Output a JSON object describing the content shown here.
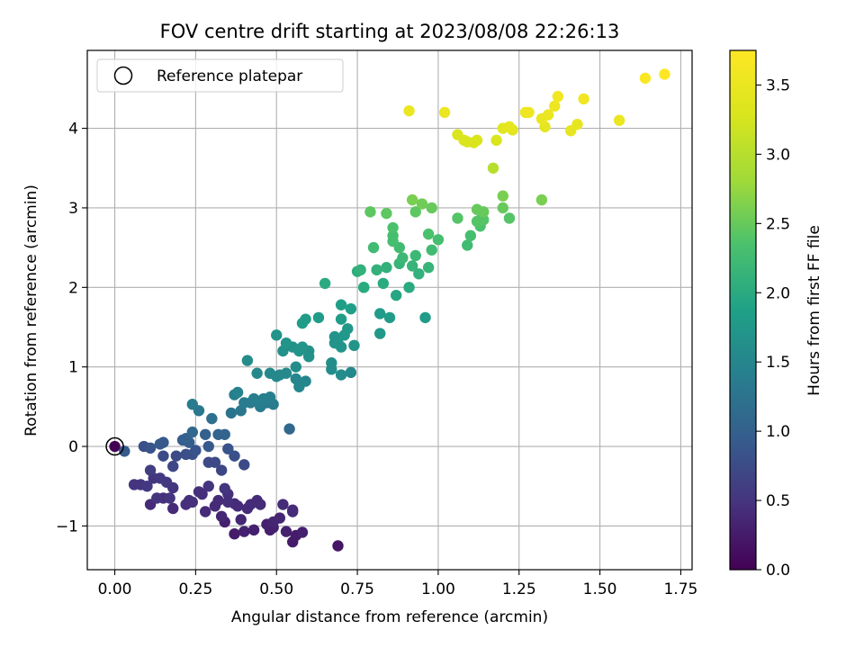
{
  "chart_data": {
    "type": "scatter",
    "title": "FOV centre drift starting at 2023/08/08 22:26:13",
    "xlabel": "Angular distance from reference (arcmin)",
    "ylabel": "Rotation from reference (arcmin)",
    "xlim": [
      -0.085,
      1.785
    ],
    "ylim": [
      -1.55,
      4.98
    ],
    "x_ticks": [
      0.0,
      0.25,
      0.5,
      0.75,
      1.0,
      1.25,
      1.5,
      1.75
    ],
    "x_tick_labels": [
      "0.00",
      "0.25",
      "0.50",
      "0.75",
      "1.00",
      "1.25",
      "1.50",
      "1.75"
    ],
    "y_ticks": [
      -1,
      0,
      1,
      2,
      3,
      4
    ],
    "y_tick_labels": [
      "−1",
      "0",
      "1",
      "2",
      "3",
      "4"
    ],
    "grid": true,
    "legend": {
      "position": "top-left",
      "label": "Reference platepar"
    },
    "reference_point": {
      "x": 0.0,
      "y": 0.0
    },
    "colorbar": {
      "label": "Hours from first FF file",
      "cmap": "viridis",
      "range": [
        0.0,
        3.75
      ],
      "ticks": [
        0.0,
        0.5,
        1.0,
        1.5,
        2.0,
        2.5,
        3.0,
        3.5
      ],
      "tick_labels": [
        "0.0",
        "0.5",
        "1.0",
        "1.5",
        "2.0",
        "2.5",
        "3.0",
        "3.5"
      ]
    },
    "series": [
      {
        "name": "FOV centre drift",
        "points": [
          [
            0.0,
            0.0,
            0.0
          ],
          [
            0.03,
            -0.06,
            0.9
          ],
          [
            0.06,
            -0.48,
            0.5
          ],
          [
            0.08,
            -0.48,
            0.5
          ],
          [
            0.09,
            0.0,
            0.8
          ],
          [
            0.1,
            -0.5,
            0.55
          ],
          [
            0.11,
            -0.02,
            0.85
          ],
          [
            0.11,
            -0.3,
            0.6
          ],
          [
            0.12,
            -0.4,
            0.5
          ],
          [
            0.11,
            -0.73,
            0.4
          ],
          [
            0.13,
            -0.65,
            0.5
          ],
          [
            0.14,
            0.03,
            0.9
          ],
          [
            0.14,
            -0.4,
            0.55
          ],
          [
            0.15,
            -0.12,
            0.75
          ],
          [
            0.15,
            0.05,
            0.9
          ],
          [
            0.15,
            -0.65,
            0.45
          ],
          [
            0.16,
            -0.45,
            0.55
          ],
          [
            0.17,
            -0.65,
            0.5
          ],
          [
            0.18,
            -0.52,
            0.5
          ],
          [
            0.18,
            -0.25,
            0.7
          ],
          [
            0.18,
            -0.78,
            0.4
          ],
          [
            0.19,
            -0.12,
            0.75
          ],
          [
            0.21,
            0.08,
            0.95
          ],
          [
            0.22,
            0.1,
            1.0
          ],
          [
            0.22,
            -0.1,
            0.8
          ],
          [
            0.22,
            -0.73,
            0.45
          ],
          [
            0.23,
            -0.68,
            0.45
          ],
          [
            0.23,
            0.05,
            0.95
          ],
          [
            0.24,
            0.18,
            1.1
          ],
          [
            0.24,
            -0.1,
            0.8
          ],
          [
            0.25,
            -0.05,
            0.85
          ],
          [
            0.24,
            0.53,
            1.35
          ],
          [
            0.24,
            -0.7,
            0.45
          ],
          [
            0.26,
            0.45,
            1.3
          ],
          [
            0.26,
            -0.57,
            0.45
          ],
          [
            0.27,
            -0.6,
            0.45
          ],
          [
            0.28,
            0.15,
            1.0
          ],
          [
            0.28,
            -0.82,
            0.4
          ],
          [
            0.29,
            -0.5,
            0.5
          ],
          [
            0.29,
            -0.2,
            0.75
          ],
          [
            0.29,
            0.0,
            0.9
          ],
          [
            0.3,
            0.35,
            1.2
          ],
          [
            0.31,
            -0.2,
            0.75
          ],
          [
            0.31,
            -0.75,
            0.4
          ],
          [
            0.32,
            -0.68,
            0.4
          ],
          [
            0.32,
            0.15,
            1.05
          ],
          [
            0.33,
            -0.3,
            0.7
          ],
          [
            0.33,
            -0.88,
            0.35
          ],
          [
            0.34,
            0.15,
            1.05
          ],
          [
            0.34,
            -0.95,
            0.3
          ],
          [
            0.34,
            -0.53,
            0.5
          ],
          [
            0.35,
            -0.7,
            0.45
          ],
          [
            0.35,
            -0.03,
            0.85
          ],
          [
            0.35,
            -0.6,
            0.45
          ],
          [
            0.36,
            0.42,
            1.25
          ],
          [
            0.37,
            0.65,
            1.4
          ],
          [
            0.37,
            -0.12,
            0.8
          ],
          [
            0.37,
            -0.72,
            0.4
          ],
          [
            0.37,
            -1.1,
            0.25
          ],
          [
            0.38,
            -0.75,
            0.4
          ],
          [
            0.38,
            0.68,
            1.45
          ],
          [
            0.39,
            0.45,
            1.3
          ],
          [
            0.39,
            -0.92,
            0.35
          ],
          [
            0.4,
            -0.23,
            0.75
          ],
          [
            0.4,
            -1.07,
            0.3
          ],
          [
            0.4,
            0.55,
            1.35
          ],
          [
            0.41,
            -0.78,
            0.4
          ],
          [
            0.41,
            1.08,
            1.6
          ],
          [
            0.42,
            -0.73,
            0.4
          ],
          [
            0.42,
            0.55,
            1.35
          ],
          [
            0.43,
            0.6,
            1.4
          ],
          [
            0.43,
            -1.05,
            0.3
          ],
          [
            0.44,
            -0.68,
            0.4
          ],
          [
            0.44,
            0.92,
            1.55
          ],
          [
            0.45,
            0.57,
            1.4
          ],
          [
            0.45,
            -0.73,
            0.4
          ],
          [
            0.45,
            0.5,
            1.35
          ],
          [
            0.46,
            0.6,
            1.4
          ],
          [
            0.47,
            0.55,
            1.35
          ],
          [
            0.47,
            -0.98,
            0.3
          ],
          [
            0.48,
            -1.05,
            0.3
          ],
          [
            0.48,
            0.92,
            1.55
          ],
          [
            0.48,
            0.62,
            1.4
          ],
          [
            0.49,
            0.53,
            1.35
          ],
          [
            0.49,
            -0.95,
            0.35
          ],
          [
            0.49,
            -1.02,
            0.3
          ],
          [
            0.5,
            1.4,
            1.7
          ],
          [
            0.5,
            0.88,
            1.55
          ],
          [
            0.51,
            0.9,
            1.55
          ],
          [
            0.51,
            -0.9,
            0.35
          ],
          [
            0.52,
            1.2,
            1.65
          ],
          [
            0.52,
            -0.73,
            0.4
          ],
          [
            0.53,
            0.92,
            1.55
          ],
          [
            0.53,
            1.3,
            1.7
          ],
          [
            0.53,
            -1.07,
            0.3
          ],
          [
            0.54,
            0.22,
            1.1
          ],
          [
            0.55,
            -0.8,
            0.4
          ],
          [
            0.55,
            -0.82,
            0.4
          ],
          [
            0.55,
            -1.2,
            0.25
          ],
          [
            0.55,
            1.25,
            1.65
          ],
          [
            0.56,
            -1.12,
            0.25
          ],
          [
            0.56,
            1.0,
            1.6
          ],
          [
            0.56,
            0.85,
            1.5
          ],
          [
            0.57,
            1.2,
            1.7
          ],
          [
            0.57,
            0.75,
            1.5
          ],
          [
            0.58,
            1.55,
            1.8
          ],
          [
            0.58,
            -1.08,
            0.3
          ],
          [
            0.58,
            1.25,
            1.7
          ],
          [
            0.59,
            0.82,
            1.5
          ],
          [
            0.59,
            1.6,
            1.8
          ],
          [
            0.6,
            1.13,
            1.65
          ],
          [
            0.6,
            1.2,
            1.65
          ],
          [
            0.63,
            1.62,
            1.8
          ],
          [
            0.65,
            2.05,
            2.0
          ],
          [
            0.67,
            1.05,
            1.6
          ],
          [
            0.67,
            0.97,
            1.6
          ],
          [
            0.68,
            1.38,
            1.7
          ],
          [
            0.68,
            1.3,
            1.7
          ],
          [
            0.69,
            -1.25,
            0.2
          ],
          [
            0.69,
            1.3,
            1.7
          ],
          [
            0.7,
            1.25,
            1.7
          ],
          [
            0.7,
            1.6,
            1.8
          ],
          [
            0.7,
            1.78,
            1.85
          ],
          [
            0.7,
            0.9,
            1.6
          ],
          [
            0.71,
            1.4,
            1.75
          ],
          [
            0.72,
            1.48,
            1.75
          ],
          [
            0.73,
            1.73,
            1.85
          ],
          [
            0.73,
            0.93,
            1.55
          ],
          [
            0.74,
            1.27,
            1.7
          ],
          [
            0.75,
            2.2,
            2.05
          ],
          [
            0.76,
            2.22,
            2.1
          ],
          [
            0.77,
            2.0,
            2.0
          ],
          [
            0.77,
            2.0,
            2.0
          ],
          [
            0.79,
            2.95,
            2.45
          ],
          [
            0.8,
            2.5,
            2.25
          ],
          [
            0.81,
            2.22,
            2.1
          ],
          [
            0.82,
            1.42,
            1.75
          ],
          [
            0.82,
            1.67,
            1.8
          ],
          [
            0.83,
            2.05,
            2.0
          ],
          [
            0.84,
            2.93,
            2.45
          ],
          [
            0.84,
            2.25,
            2.1
          ],
          [
            0.85,
            1.62,
            1.8
          ],
          [
            0.86,
            2.75,
            2.35
          ],
          [
            0.86,
            2.65,
            2.3
          ],
          [
            0.86,
            2.58,
            2.3
          ],
          [
            0.87,
            1.9,
            1.95
          ],
          [
            0.88,
            2.5,
            2.25
          ],
          [
            0.88,
            2.3,
            2.15
          ],
          [
            0.89,
            2.37,
            2.2
          ],
          [
            0.91,
            4.22,
            3.5
          ],
          [
            0.91,
            2.0,
            2.0
          ],
          [
            0.92,
            2.27,
            2.15
          ],
          [
            0.92,
            3.1,
            2.6
          ],
          [
            0.93,
            2.4,
            2.2
          ],
          [
            0.93,
            2.95,
            2.45
          ],
          [
            0.94,
            2.17,
            2.1
          ],
          [
            0.95,
            3.05,
            2.55
          ],
          [
            0.96,
            1.62,
            1.8
          ],
          [
            0.97,
            2.25,
            2.15
          ],
          [
            0.97,
            2.67,
            2.35
          ],
          [
            0.98,
            2.47,
            2.25
          ],
          [
            0.98,
            3.0,
            2.5
          ],
          [
            1.0,
            2.6,
            2.3
          ],
          [
            1.02,
            4.2,
            3.5
          ],
          [
            1.06,
            2.87,
            2.4
          ],
          [
            1.06,
            3.92,
            3.3
          ],
          [
            1.08,
            3.85,
            3.3
          ],
          [
            1.09,
            3.83,
            3.3
          ],
          [
            1.09,
            2.53,
            2.25
          ],
          [
            1.1,
            2.65,
            2.3
          ],
          [
            1.11,
            3.82,
            3.3
          ],
          [
            1.12,
            3.85,
            3.3
          ],
          [
            1.12,
            2.83,
            2.4
          ],
          [
            1.12,
            2.98,
            2.5
          ],
          [
            1.13,
            2.77,
            2.35
          ],
          [
            1.13,
            2.85,
            2.4
          ],
          [
            1.14,
            2.95,
            2.5
          ],
          [
            1.14,
            2.85,
            2.4
          ],
          [
            1.17,
            3.5,
            3.0
          ],
          [
            1.18,
            3.85,
            3.3
          ],
          [
            1.2,
            3.0,
            2.5
          ],
          [
            1.2,
            4.0,
            3.4
          ],
          [
            1.2,
            3.15,
            2.6
          ],
          [
            1.22,
            2.87,
            2.4
          ],
          [
            1.22,
            4.02,
            3.45
          ],
          [
            1.23,
            3.98,
            3.4
          ],
          [
            1.27,
            4.2,
            3.55
          ],
          [
            1.28,
            4.2,
            3.55
          ],
          [
            1.32,
            4.12,
            3.5
          ],
          [
            1.32,
            3.1,
            2.6
          ],
          [
            1.33,
            4.02,
            3.45
          ],
          [
            1.34,
            4.17,
            3.5
          ],
          [
            1.36,
            4.28,
            3.55
          ],
          [
            1.37,
            4.4,
            3.6
          ],
          [
            1.41,
            3.97,
            3.45
          ],
          [
            1.43,
            4.05,
            3.45
          ],
          [
            1.45,
            4.37,
            3.6
          ],
          [
            1.56,
            4.1,
            3.5
          ],
          [
            1.64,
            4.63,
            3.7
          ],
          [
            1.7,
            4.68,
            3.75
          ]
        ]
      }
    ]
  }
}
